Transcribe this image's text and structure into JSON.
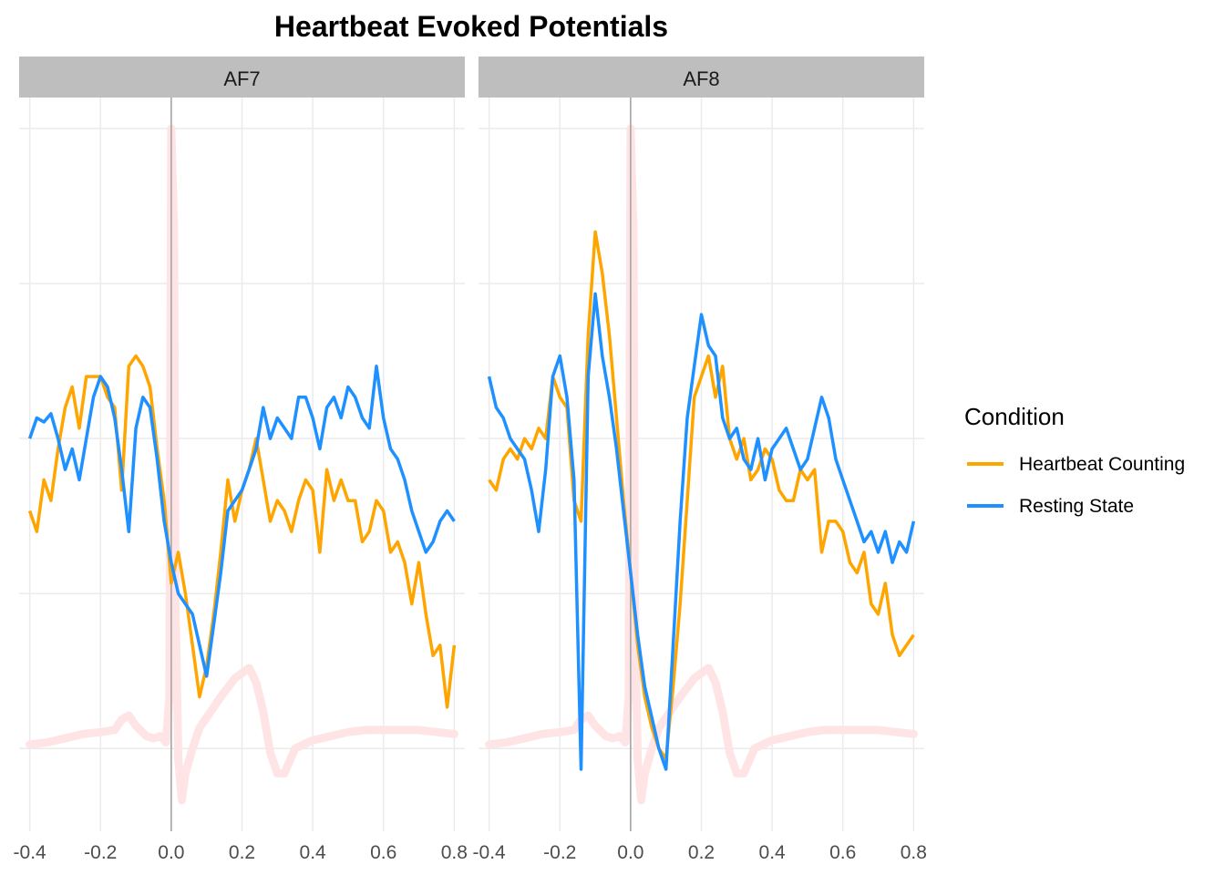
{
  "chart_data": {
    "type": "line",
    "title": "Heartbeat Evoked Potentials",
    "xlabel": "",
    "ylabel": "",
    "xlim": [
      -0.43,
      0.83
    ],
    "ylim": [
      -1.9,
      1.65
    ],
    "x_ticks": [
      -0.4,
      -0.2,
      0.0,
      0.2,
      0.4,
      0.6,
      0.8
    ],
    "x_tick_labels": [
      "-0.4",
      "-0.2",
      "0.0",
      "0.2",
      "0.4",
      "0.6",
      "0.8"
    ],
    "y_gridlines": [
      -1.5,
      -0.75,
      0,
      0.75,
      1.5
    ],
    "grid": true,
    "legend": {
      "title": "Condition",
      "position": "right",
      "entries": [
        {
          "name": "Heartbeat Counting",
          "color": "#FFA500"
        },
        {
          "name": "Resting State",
          "color": "#1E90FF"
        }
      ]
    },
    "background_trace": {
      "color": "#FFE4E6",
      "description_of_shape": "ECG"
    },
    "facets": [
      {
        "label": "AF7",
        "series": [
          {
            "name": "Heartbeat Counting",
            "color": "#FFA500",
            "x": [
              -0.4,
              -0.38,
              -0.36,
              -0.34,
              -0.32,
              -0.3,
              -0.28,
              -0.26,
              -0.24,
              -0.22,
              -0.2,
              -0.18,
              -0.16,
              -0.14,
              -0.12,
              -0.1,
              -0.08,
              -0.06,
              -0.04,
              -0.02,
              0.0,
              0.02,
              0.04,
              0.06,
              0.08,
              0.1,
              0.12,
              0.14,
              0.16,
              0.18,
              0.2,
              0.22,
              0.24,
              0.26,
              0.28,
              0.3,
              0.32,
              0.34,
              0.36,
              0.38,
              0.4,
              0.42,
              0.44,
              0.46,
              0.48,
              0.5,
              0.52,
              0.54,
              0.56,
              0.58,
              0.6,
              0.62,
              0.64,
              0.66,
              0.68,
              0.7,
              0.72,
              0.74,
              0.76,
              0.78,
              0.8
            ],
            "values": [
              -0.35,
              -0.45,
              -0.2,
              -0.3,
              -0.05,
              0.15,
              0.25,
              0.05,
              0.3,
              0.3,
              0.3,
              0.2,
              0.15,
              -0.25,
              0.35,
              0.4,
              0.35,
              0.25,
              -0.05,
              -0.3,
              -0.7,
              -0.55,
              -0.75,
              -1.0,
              -1.25,
              -1.1,
              -0.85,
              -0.55,
              -0.2,
              -0.4,
              -0.25,
              -0.15,
              0.0,
              -0.2,
              -0.4,
              -0.3,
              -0.35,
              -0.45,
              -0.3,
              -0.2,
              -0.25,
              -0.55,
              -0.15,
              -0.3,
              -0.2,
              -0.3,
              -0.3,
              -0.5,
              -0.45,
              -0.3,
              -0.35,
              -0.55,
              -0.5,
              -0.6,
              -0.8,
              -0.6,
              -0.85,
              -1.05,
              -1.0,
              -1.3,
              -1.0
            ]
          },
          {
            "name": "Resting State",
            "color": "#1E90FF",
            "x": [
              -0.4,
              -0.38,
              -0.36,
              -0.34,
              -0.32,
              -0.3,
              -0.28,
              -0.26,
              -0.24,
              -0.22,
              -0.2,
              -0.18,
              -0.16,
              -0.14,
              -0.12,
              -0.1,
              -0.08,
              -0.06,
              -0.04,
              -0.02,
              0.0,
              0.02,
              0.04,
              0.06,
              0.08,
              0.1,
              0.12,
              0.14,
              0.16,
              0.18,
              0.2,
              0.22,
              0.24,
              0.26,
              0.28,
              0.3,
              0.32,
              0.34,
              0.36,
              0.38,
              0.4,
              0.42,
              0.44,
              0.46,
              0.48,
              0.5,
              0.52,
              0.54,
              0.56,
              0.58,
              0.6,
              0.62,
              0.64,
              0.66,
              0.68,
              0.7,
              0.72,
              0.74,
              0.76,
              0.78,
              0.8
            ],
            "values": [
              0.0,
              0.1,
              0.08,
              0.12,
              0.0,
              -0.15,
              -0.05,
              -0.2,
              0.0,
              0.2,
              0.3,
              0.25,
              0.1,
              -0.15,
              -0.45,
              0.05,
              0.2,
              0.15,
              -0.1,
              -0.4,
              -0.6,
              -0.75,
              -0.8,
              -0.85,
              -1.0,
              -1.15,
              -0.9,
              -0.65,
              -0.35,
              -0.3,
              -0.25,
              -0.15,
              -0.05,
              0.15,
              0.0,
              0.1,
              0.05,
              0.0,
              0.2,
              0.2,
              0.1,
              -0.05,
              0.15,
              0.2,
              0.1,
              0.25,
              0.2,
              0.1,
              0.05,
              0.35,
              0.1,
              -0.05,
              -0.1,
              -0.2,
              -0.35,
              -0.45,
              -0.55,
              -0.5,
              -0.4,
              -0.35,
              -0.4
            ]
          }
        ]
      },
      {
        "label": "AF8",
        "series": [
          {
            "name": "Heartbeat Counting",
            "color": "#FFA500",
            "x": [
              -0.4,
              -0.38,
              -0.36,
              -0.34,
              -0.32,
              -0.3,
              -0.28,
              -0.26,
              -0.24,
              -0.22,
              -0.2,
              -0.18,
              -0.16,
              -0.14,
              -0.12,
              -0.1,
              -0.08,
              -0.06,
              -0.04,
              -0.02,
              0.0,
              0.02,
              0.04,
              0.06,
              0.08,
              0.1,
              0.12,
              0.14,
              0.16,
              0.18,
              0.2,
              0.22,
              0.24,
              0.26,
              0.28,
              0.3,
              0.32,
              0.34,
              0.36,
              0.38,
              0.4,
              0.42,
              0.44,
              0.46,
              0.48,
              0.5,
              0.52,
              0.54,
              0.56,
              0.58,
              0.6,
              0.62,
              0.64,
              0.66,
              0.68,
              0.7,
              0.72,
              0.74,
              0.76,
              0.78,
              0.8
            ],
            "values": [
              -0.2,
              -0.25,
              -0.1,
              -0.05,
              -0.1,
              0.0,
              -0.05,
              0.05,
              0.0,
              0.3,
              0.2,
              0.15,
              -0.3,
              -0.4,
              0.5,
              1.0,
              0.8,
              0.5,
              0.1,
              -0.3,
              -0.65,
              -1.0,
              -1.25,
              -1.4,
              -1.5,
              -1.55,
              -1.2,
              -0.8,
              -0.3,
              0.2,
              0.3,
              0.4,
              0.2,
              0.35,
              0.0,
              -0.1,
              0.0,
              -0.2,
              -0.15,
              -0.05,
              -0.1,
              -0.25,
              -0.3,
              -0.3,
              -0.15,
              -0.2,
              -0.15,
              -0.55,
              -0.4,
              -0.4,
              -0.45,
              -0.6,
              -0.65,
              -0.55,
              -0.8,
              -0.85,
              -0.7,
              -0.95,
              -1.05,
              -1.0,
              -0.95
            ]
          },
          {
            "name": "Resting State",
            "color": "#1E90FF",
            "x": [
              -0.4,
              -0.38,
              -0.36,
              -0.34,
              -0.32,
              -0.3,
              -0.28,
              -0.26,
              -0.24,
              -0.22,
              -0.2,
              -0.18,
              -0.16,
              -0.14,
              -0.12,
              -0.1,
              -0.08,
              -0.06,
              -0.04,
              -0.02,
              0.0,
              0.02,
              0.04,
              0.06,
              0.08,
              0.1,
              0.12,
              0.14,
              0.16,
              0.18,
              0.2,
              0.22,
              0.24,
              0.26,
              0.28,
              0.3,
              0.32,
              0.34,
              0.36,
              0.38,
              0.4,
              0.42,
              0.44,
              0.46,
              0.48,
              0.5,
              0.52,
              0.54,
              0.56,
              0.58,
              0.6,
              0.62,
              0.64,
              0.66,
              0.68,
              0.7,
              0.72,
              0.74,
              0.76,
              0.78,
              0.8
            ],
            "values": [
              0.3,
              0.15,
              0.1,
              0.0,
              -0.05,
              -0.1,
              -0.25,
              -0.45,
              -0.15,
              0.3,
              0.4,
              0.2,
              -0.2,
              -1.6,
              0.3,
              0.7,
              0.4,
              0.2,
              -0.05,
              -0.35,
              -0.65,
              -0.95,
              -1.2,
              -1.35,
              -1.5,
              -1.6,
              -1.0,
              -0.4,
              0.1,
              0.35,
              0.6,
              0.45,
              0.4,
              0.1,
              0.0,
              0.05,
              -0.1,
              -0.15,
              0.0,
              -0.2,
              -0.05,
              0.0,
              0.05,
              -0.05,
              -0.15,
              -0.1,
              0.05,
              0.2,
              0.1,
              -0.1,
              -0.2,
              -0.3,
              -0.4,
              -0.5,
              -0.45,
              -0.55,
              -0.45,
              -0.6,
              -0.5,
              -0.55,
              -0.4
            ]
          }
        ]
      }
    ]
  }
}
